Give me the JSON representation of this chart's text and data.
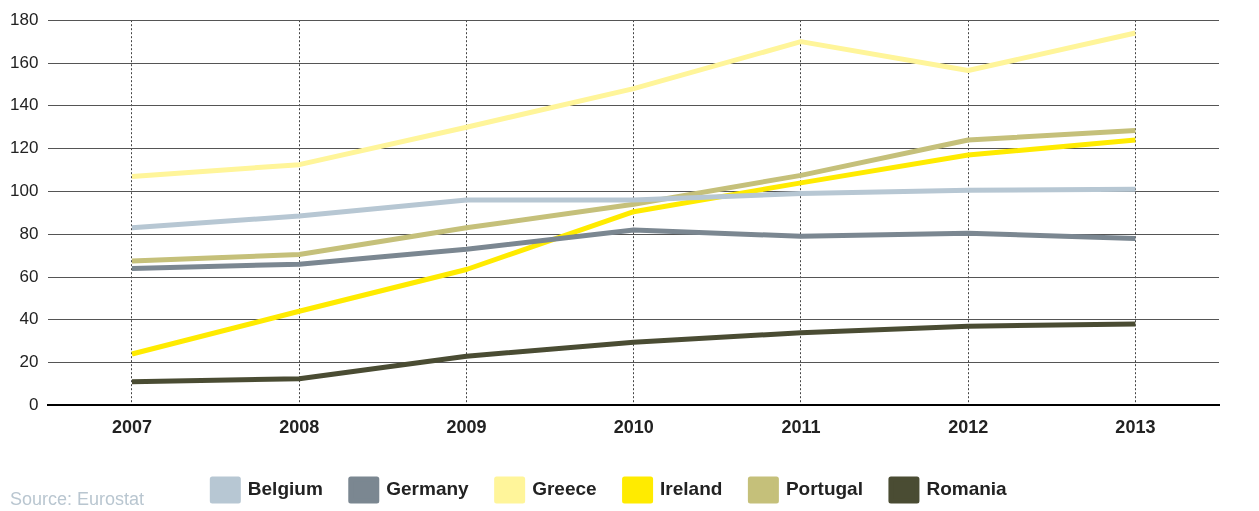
{
  "chart_data": {
    "type": "line",
    "categories": [
      "2007",
      "2008",
      "2009",
      "2010",
      "2011",
      "2012",
      "2013"
    ],
    "series": [
      {
        "name": "Belgium",
        "color": "#b7c7d3",
        "values": [
          83,
          88.5,
          96,
          96,
          99,
          100.5,
          101
        ]
      },
      {
        "name": "Germany",
        "color": "#7b8791",
        "values": [
          64,
          66,
          73,
          82,
          79,
          80.5,
          78
        ]
      },
      {
        "name": "Greece",
        "color": "#fff59a",
        "values": [
          107,
          112.5,
          130,
          148,
          170,
          156.5,
          174
        ]
      },
      {
        "name": "Ireland",
        "color": "#ffeb00",
        "values": [
          24,
          44,
          63.5,
          90.5,
          104,
          117,
          124
        ]
      },
      {
        "name": "Portugal",
        "color": "#c5c07a",
        "values": [
          67.5,
          70.5,
          83,
          94,
          107.5,
          124,
          128.5
        ]
      },
      {
        "name": "Romania",
        "color": "#4a4c33",
        "values": [
          11,
          12.5,
          23,
          29.5,
          34,
          37,
          38
        ]
      }
    ],
    "ylim": [
      0,
      180
    ],
    "yticks": [
      0,
      20,
      40,
      60,
      80,
      100,
      120,
      140,
      160,
      180
    ],
    "grid": true,
    "legend": "bottom",
    "marker": "none",
    "line_style": "solid",
    "annotations": [
      "Source: Eurostat"
    ]
  }
}
